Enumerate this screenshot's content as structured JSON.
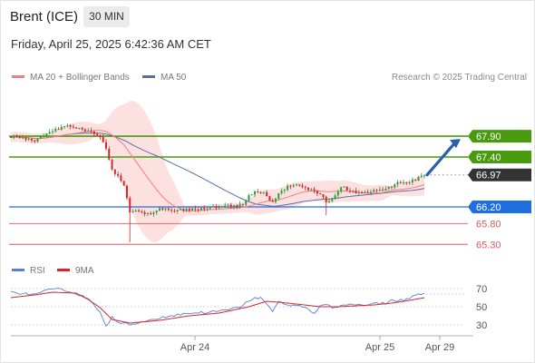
{
  "header": {
    "instrument": "Brent (ICE)",
    "timeframe": "30 MIN",
    "timestamp": "Friday, April 25, 2025 6:42:36 AM CET"
  },
  "legend": {
    "ma20": "MA 20 + Bollinger Bands",
    "ma50": "MA 50",
    "rsi": "RSI",
    "rsi_ma": "9MA",
    "copyright": "Research © 2025 Trading Central"
  },
  "colors": {
    "bullish": "#2e9d3a",
    "bearish": "#d6262b",
    "ma20": "#f08080",
    "bollinger_fill": "#fde0e0",
    "ma50": "#5a6fa8",
    "resistance": "#4a9a10",
    "support_pivot": "#1f6fe0",
    "support": "#e05a5a",
    "last_price": "#333333",
    "rsi_line": "#5b7fd8",
    "rsi_ma": "#d6262b",
    "arrow": "#2a5fb0"
  },
  "chart_data": [
    {
      "type": "candlestick",
      "title": "Brent (ICE) 30 MIN",
      "x_tick_labels": [
        "Apr 24",
        "Apr 25",
        "Apr 29"
      ],
      "ylim": [
        65.0,
        68.6
      ],
      "price_levels": [
        {
          "label": "67.90",
          "value": 67.9,
          "kind": "resistance"
        },
        {
          "label": "67.40",
          "value": 67.4,
          "kind": "resistance"
        },
        {
          "label": "66.97",
          "value": 66.97,
          "kind": "last"
        },
        {
          "label": "66.20",
          "value": 66.2,
          "kind": "pivot"
        },
        {
          "label": "65.80",
          "value": 65.8,
          "kind": "support"
        },
        {
          "label": "65.30",
          "value": 65.3,
          "kind": "support"
        }
      ],
      "close_anchors": [
        [
          0,
          67.9
        ],
        [
          4,
          67.86
        ],
        [
          8,
          67.8
        ],
        [
          10,
          67.86
        ],
        [
          14,
          68.02
        ],
        [
          18,
          68.12
        ],
        [
          22,
          68.1
        ],
        [
          26,
          68.02
        ],
        [
          28,
          67.95
        ],
        [
          30,
          67.88
        ],
        [
          32,
          67.62
        ],
        [
          34,
          67.08
        ],
        [
          36,
          66.93
        ],
        [
          38,
          66.74
        ],
        [
          40,
          66.08
        ],
        [
          43,
          66.12
        ],
        [
          46,
          66.02
        ],
        [
          50,
          66.15
        ],
        [
          55,
          66.12
        ],
        [
          60,
          66.13
        ],
        [
          65,
          66.16
        ],
        [
          70,
          66.2
        ],
        [
          74,
          66.2
        ],
        [
          78,
          66.28
        ],
        [
          80,
          66.48
        ],
        [
          83,
          66.58
        ],
        [
          86,
          66.45
        ],
        [
          88,
          66.3
        ],
        [
          90,
          66.5
        ],
        [
          93,
          66.7
        ],
        [
          96,
          66.72
        ],
        [
          100,
          66.63
        ],
        [
          104,
          66.52
        ],
        [
          106,
          66.32
        ],
        [
          108,
          66.42
        ],
        [
          111,
          66.66
        ],
        [
          114,
          66.6
        ],
        [
          118,
          66.52
        ],
        [
          122,
          66.58
        ],
        [
          126,
          66.62
        ],
        [
          130,
          66.78
        ],
        [
          134,
          66.8
        ],
        [
          137,
          66.93
        ],
        [
          139,
          66.97
        ]
      ],
      "n_candles": 140
    },
    {
      "type": "line",
      "title": "RSI",
      "ylim": [
        20,
        80
      ],
      "y_ticks": [
        30,
        50,
        70
      ],
      "series": [
        {
          "name": "RSI",
          "anchors": [
            [
              0,
              66
            ],
            [
              8,
              63
            ],
            [
              14,
              70
            ],
            [
              18,
              68
            ],
            [
              22,
              65
            ],
            [
              26,
              58
            ],
            [
              30,
              45
            ],
            [
              32,
              28
            ],
            [
              34,
              38
            ],
            [
              36,
              33
            ],
            [
              40,
              30
            ],
            [
              46,
              35
            ],
            [
              52,
              39
            ],
            [
              60,
              43
            ],
            [
              66,
              44
            ],
            [
              70,
              45
            ],
            [
              74,
              47
            ],
            [
              78,
              51
            ],
            [
              80,
              57
            ],
            [
              84,
              61
            ],
            [
              86,
              52
            ],
            [
              88,
              45
            ],
            [
              90,
              55
            ],
            [
              94,
              52
            ],
            [
              98,
              50
            ],
            [
              100,
              48
            ],
            [
              102,
              42
            ],
            [
              104,
              52
            ],
            [
              110,
              49
            ],
            [
              114,
              54
            ],
            [
              118,
              51
            ],
            [
              122,
              53
            ],
            [
              126,
              54
            ],
            [
              128,
              57
            ],
            [
              132,
              57
            ],
            [
              136,
              63
            ],
            [
              139,
              64
            ]
          ]
        },
        {
          "name": "9MA",
          "anchors": [
            [
              0,
              60
            ],
            [
              8,
              63
            ],
            [
              14,
              66
            ],
            [
              22,
              65
            ],
            [
              26,
              58
            ],
            [
              30,
              49
            ],
            [
              34,
              36
            ],
            [
              40,
              32
            ],
            [
              50,
              35
            ],
            [
              60,
              40
            ],
            [
              70,
              43
            ],
            [
              80,
              50
            ],
            [
              86,
              56
            ],
            [
              90,
              55
            ],
            [
              96,
              53
            ],
            [
              104,
              50
            ],
            [
              110,
              50
            ],
            [
              116,
              51
            ],
            [
              122,
              52
            ],
            [
              128,
              54
            ],
            [
              134,
              57
            ],
            [
              139,
              60
            ]
          ]
        }
      ]
    }
  ]
}
